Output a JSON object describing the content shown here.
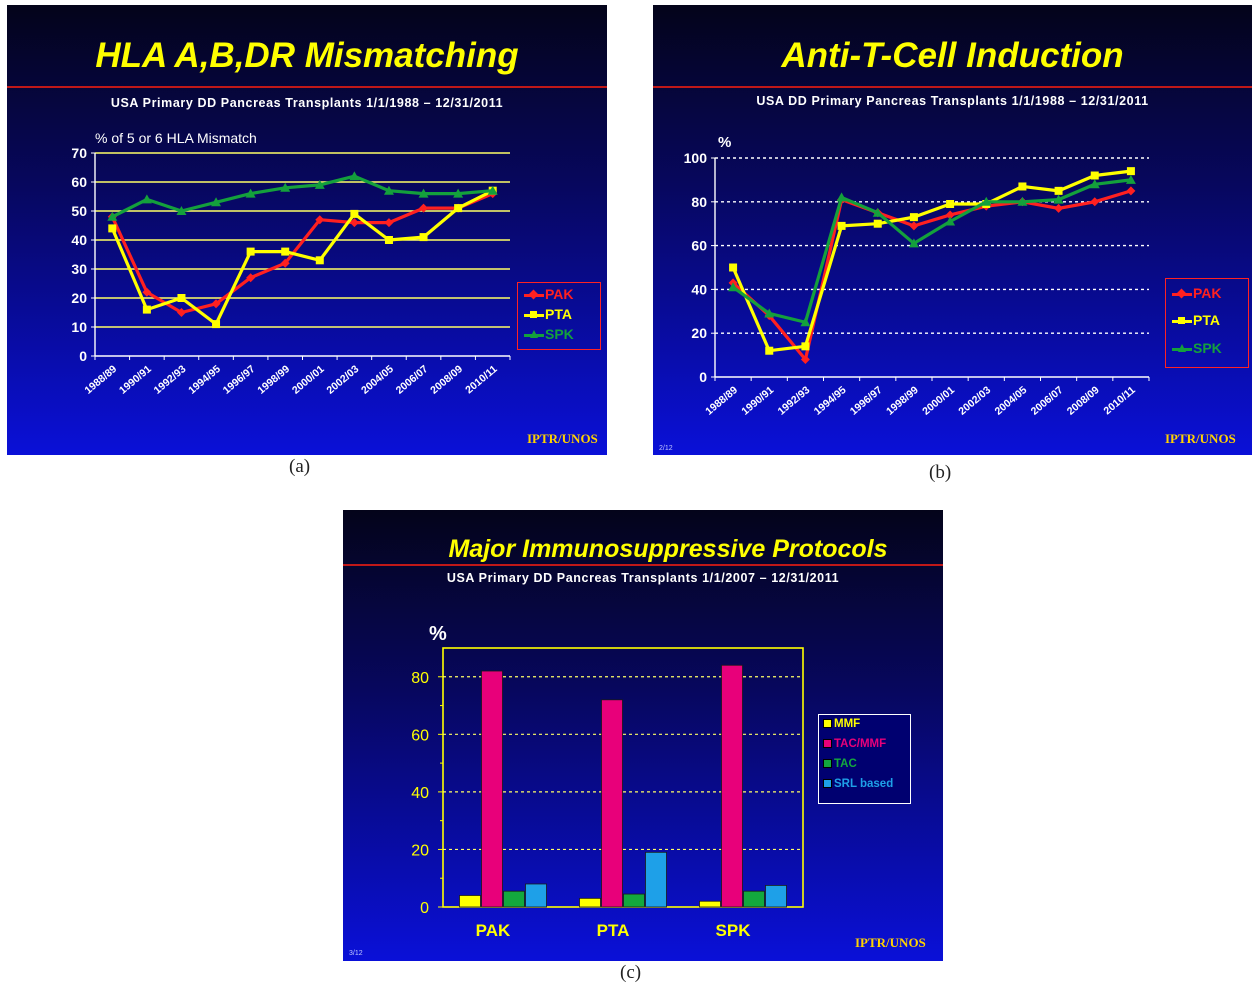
{
  "panels": {
    "a": {
      "title": "HLA A,B,DR Mismatching",
      "subtitle": "USA Primary DD Pancreas Transplants 1/1/1988 – 12/31/2011",
      "ytitle": "% of 5 or 6 HLA Mismatch",
      "footer": "IPTR/UNOS",
      "caption": "(a)"
    },
    "b": {
      "title": "Anti-T-Cell Induction",
      "subtitle": "USA DD Primary Pancreas Transplants 1/1/1988 – 12/31/2011",
      "ytitle": "%",
      "footer": "IPTR/UNOS",
      "slide_number": "2/12",
      "caption": "(b)"
    },
    "c": {
      "title": "Major Immunosuppressive Protocols",
      "subtitle": "USA Primary DD  Pancreas Transplants 1/1/2007 – 12/31/2011",
      "ytitle": "%",
      "footer": "IPTR/UNOS",
      "slide_number": "3/12",
      "caption": "(c)"
    }
  },
  "colors": {
    "PAK": "#ff2020",
    "PTA": "#ffff00",
    "SPK": "#14a03c",
    "MMF": "#ffff00",
    "TAC/MMF": "#e8007a",
    "TAC": "#13a83e",
    "SRL based": "#1ea0e8",
    "title": "#ffff00",
    "grid": "#ffff88"
  },
  "chart_data": [
    {
      "id": "a",
      "type": "line",
      "title": "HLA A,B,DR Mismatching",
      "ylabel": "% of 5 or 6 HLA Mismatch",
      "categories": [
        "1988/89",
        "1990/91",
        "1992/93",
        "1994/95",
        "1996/97",
        "1998/99",
        "2000/01",
        "2002/03",
        "2004/05",
        "2006/07",
        "2008/09",
        "2010/11"
      ],
      "ylim": [
        0,
        70
      ],
      "yticks": [
        0,
        10,
        20,
        30,
        40,
        50,
        60,
        70
      ],
      "grid": true,
      "legend_position": "right",
      "series": [
        {
          "name": "PAK",
          "values": [
            48,
            22,
            15,
            18,
            27,
            32,
            47,
            46,
            46,
            51,
            51,
            56
          ]
        },
        {
          "name": "PTA",
          "values": [
            44,
            16,
            20,
            11,
            36,
            36,
            33,
            49,
            40,
            41,
            51,
            57
          ]
        },
        {
          "name": "SPK",
          "values": [
            48,
            54,
            50,
            53,
            56,
            58,
            59,
            62,
            57,
            56,
            56,
            57
          ]
        }
      ]
    },
    {
      "id": "b",
      "type": "line",
      "title": "Anti-T-Cell Induction",
      "ylabel": "%",
      "categories": [
        "1988/89",
        "1990/91",
        "1992/93",
        "1994/95",
        "1996/97",
        "1998/99",
        "2000/01",
        "2002/03",
        "2004/05",
        "2006/07",
        "2008/09",
        "2010/11"
      ],
      "ylim": [
        0,
        100
      ],
      "yticks": [
        0,
        20,
        40,
        60,
        80,
        100
      ],
      "grid": true,
      "legend_position": "right",
      "series": [
        {
          "name": "PAK",
          "values": [
            43,
            28,
            8,
            81,
            75,
            69,
            74,
            78,
            80,
            77,
            80,
            85
          ]
        },
        {
          "name": "PTA",
          "values": [
            50,
            12,
            14,
            69,
            70,
            73,
            79,
            79,
            87,
            85,
            92,
            94
          ]
        },
        {
          "name": "SPK",
          "values": [
            41,
            29,
            25,
            82,
            75,
            61,
            71,
            80,
            80,
            81,
            88,
            90
          ]
        }
      ]
    },
    {
      "id": "c",
      "type": "bar",
      "title": "Major Immunosuppressive Protocols",
      "ylabel": "%",
      "categories": [
        "PAK",
        "PTA",
        "SPK"
      ],
      "ylim": [
        0,
        90
      ],
      "yticks": [
        0,
        20,
        40,
        60,
        80
      ],
      "grid": true,
      "legend_position": "right",
      "series": [
        {
          "name": "MMF",
          "values": [
            4,
            3,
            2
          ]
        },
        {
          "name": "TAC/MMF",
          "values": [
            82,
            72,
            84
          ]
        },
        {
          "name": "TAC",
          "values": [
            5.5,
            4.5,
            5.5
          ]
        },
        {
          "name": "SRL based",
          "values": [
            8,
            19,
            7.5
          ]
        }
      ]
    }
  ]
}
